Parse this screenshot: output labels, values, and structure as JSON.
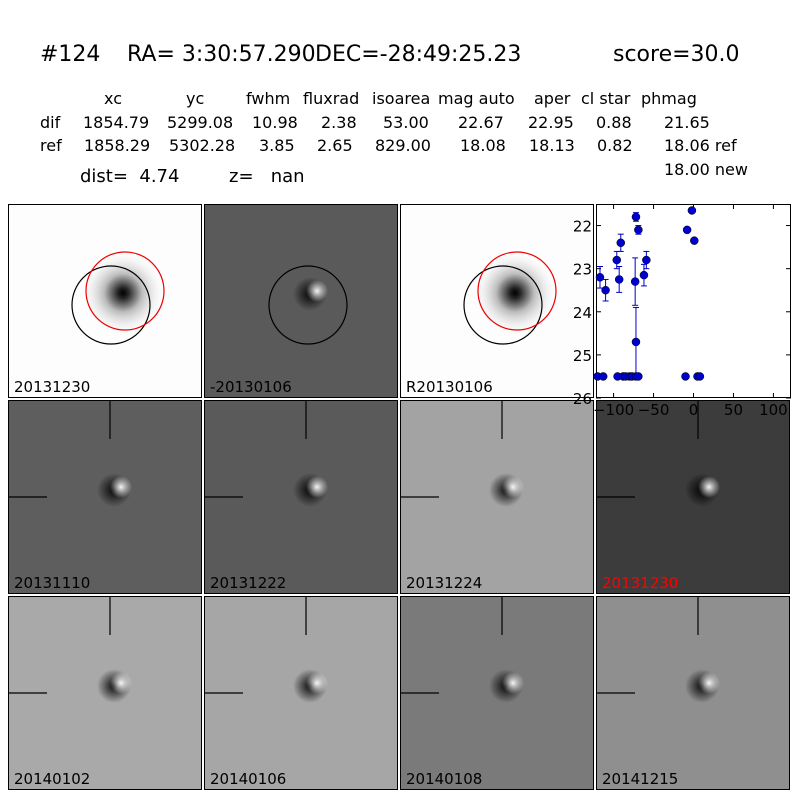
{
  "title": {
    "id": "#124",
    "ra": "RA= 3:30:57.290",
    "dec": "DEC=-28:49:25.23",
    "score": "score=30.0"
  },
  "table": {
    "columns": [
      "xc",
      "yc",
      "fwhm",
      "fluxrad",
      "isoarea",
      "mag auto",
      "aper",
      "cl star",
      "phmag"
    ],
    "rows": [
      {
        "label": "dif",
        "values": [
          "1854.79",
          "5299.08",
          "10.98",
          "2.38",
          "53.00",
          "22.67",
          "22.95",
          "0.88",
          "21.65"
        ]
      },
      {
        "label": "ref",
        "values": [
          "1858.29",
          "5302.28",
          "3.85",
          "2.65",
          "829.00",
          "18.08",
          "18.13",
          "0.82",
          "18.06 ref"
        ]
      }
    ],
    "phmag_new": "18.00 new"
  },
  "dist": "dist=  4.74",
  "z": "z=   nan",
  "panels": [
    {
      "label": "20131230",
      "style": "ref",
      "bg": "#fdfdfd"
    },
    {
      "label": "-20130106",
      "style": "diff-circle",
      "bg": "#5a5a5a"
    },
    {
      "label": "R20130106",
      "style": "ref",
      "bg": "#fdfdfd"
    },
    {
      "label": "20131110",
      "style": "diff",
      "bg": "#5e5e5e"
    },
    {
      "label": "20131222",
      "style": "diff",
      "bg": "#5a5a5a"
    },
    {
      "label": "20131224",
      "style": "diff",
      "bg": "#a3a3a3"
    },
    {
      "label": "20131230",
      "style": "diff",
      "bg": "#3c3c3c",
      "label_color": "#ff0000"
    },
    {
      "label": "20140102",
      "style": "diff",
      "bg": "#a9a9a9"
    },
    {
      "label": "20140106",
      "style": "diff",
      "bg": "#a6a6a6"
    },
    {
      "label": "20140108",
      "style": "diff",
      "bg": "#7a7a7a"
    },
    {
      "label": "20141215",
      "style": "diff",
      "bg": "#8f8f8f"
    }
  ],
  "chart_data": {
    "type": "scatter",
    "title": "",
    "xlabel": "",
    "ylabel": "",
    "xlim": [
      -122,
      122
    ],
    "ylim": [
      26,
      21.5
    ],
    "xticks": [
      -100,
      -50,
      0,
      50,
      100
    ],
    "xtick_labels": [
      "−100",
      "−50",
      "0",
      "50",
      "100"
    ],
    "yticks": [
      22,
      23,
      24,
      25,
      26
    ],
    "ytick_labels": [
      "22",
      "23",
      "24",
      "25",
      "26"
    ],
    "color": "#0000cc",
    "points": [
      {
        "x": -120,
        "y": 25.5
      },
      {
        "x": -113,
        "y": 25.5
      },
      {
        "x": -117,
        "y": 23.2,
        "err": 0.25
      },
      {
        "x": -110,
        "y": 23.5,
        "err": 0.25
      },
      {
        "x": -96,
        "y": 22.8,
        "err": 0.2
      },
      {
        "x": -93,
        "y": 23.25,
        "err": 0.3
      },
      {
        "x": -91,
        "y": 22.4,
        "err": 0.2
      },
      {
        "x": -95,
        "y": 25.5
      },
      {
        "x": -88,
        "y": 25.5
      },
      {
        "x": -85,
        "y": 25.5
      },
      {
        "x": -80,
        "y": 25.5
      },
      {
        "x": -77,
        "y": 25.5
      },
      {
        "x": -72,
        "y": 25.5
      },
      {
        "x": -69,
        "y": 25.5
      },
      {
        "x": -72,
        "y": 21.8,
        "err": 0.1
      },
      {
        "x": -69,
        "y": 22.1,
        "err": 0.1
      },
      {
        "x": -73,
        "y": 23.3,
        "err": 0.55
      },
      {
        "x": -72,
        "y": 24.7,
        "err": 0.8
      },
      {
        "x": -62,
        "y": 23.15,
        "err": 0.25
      },
      {
        "x": -59,
        "y": 22.8,
        "err": 0.2
      },
      {
        "x": -10,
        "y": 25.5
      },
      {
        "x": -8,
        "y": 22.1
      },
      {
        "x": -2,
        "y": 21.65
      },
      {
        "x": 1,
        "y": 22.35
      },
      {
        "x": 5,
        "y": 25.5
      },
      {
        "x": 8,
        "y": 25.5
      }
    ]
  }
}
